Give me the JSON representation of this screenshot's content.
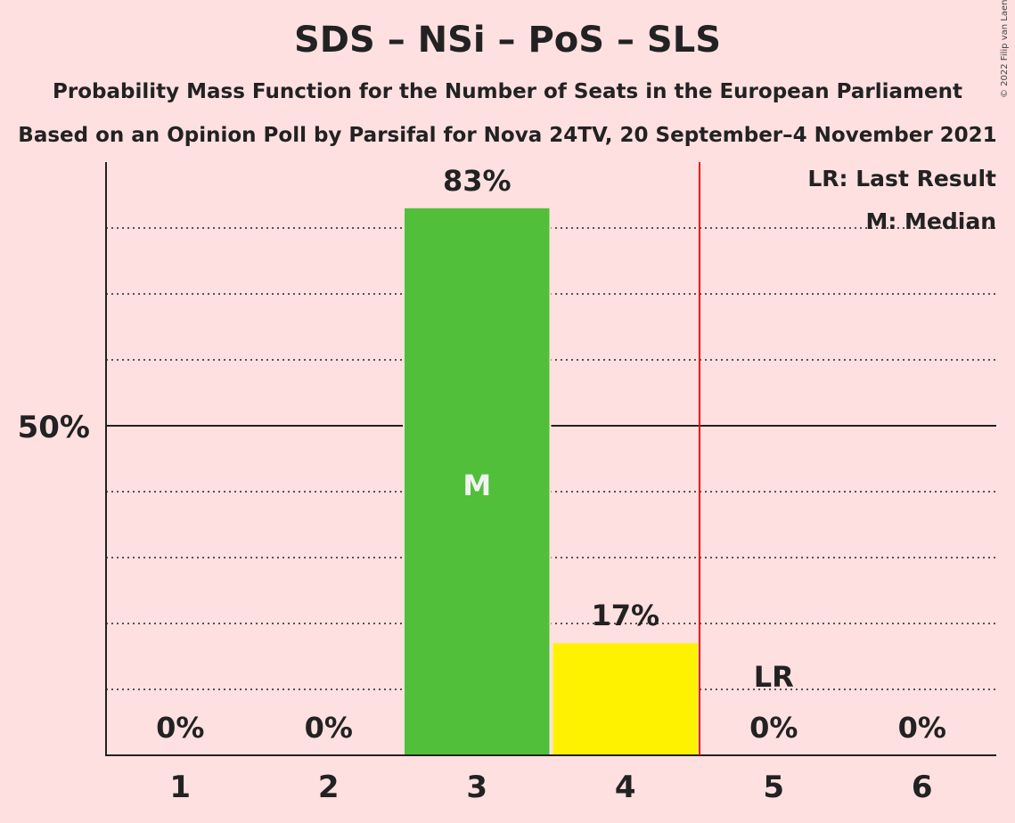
{
  "title": "SDS – NSi – PoS – SLS",
  "subtitle": "Probability Mass Function for the Number of Seats in the European Parliament",
  "subtitle2": "Based on an Opinion Poll by Parsifal for Nova 24TV, 20 September–4 November 2021",
  "copyright": "© 2022 Filip van Laenen",
  "legend": {
    "last_result": "LR: Last Result",
    "median": "M: Median"
  },
  "chart_data": {
    "type": "bar",
    "categories": [
      "1",
      "2",
      "3",
      "4",
      "5",
      "6"
    ],
    "values": [
      0,
      0,
      83,
      17,
      0,
      0
    ],
    "value_labels": [
      "0%",
      "0%",
      "83%",
      "17%",
      "0%",
      "0%"
    ],
    "bar_colors": [
      "#51bf39",
      "#51bf39",
      "#51bf39",
      "#fff200",
      "#51bf39",
      "#51bf39"
    ],
    "ylim": [
      0,
      90
    ],
    "ytick_label": "50%",
    "ytick_value": 50,
    "gridlines": [
      10,
      20,
      30,
      40,
      60,
      70,
      80
    ],
    "median_category": "3",
    "median_marker": "M",
    "last_result_category": "5",
    "last_result_marker": "LR",
    "last_result_line_after_category": "4",
    "last_result_line_color": "#ff0000",
    "legend_position": "top-right"
  }
}
